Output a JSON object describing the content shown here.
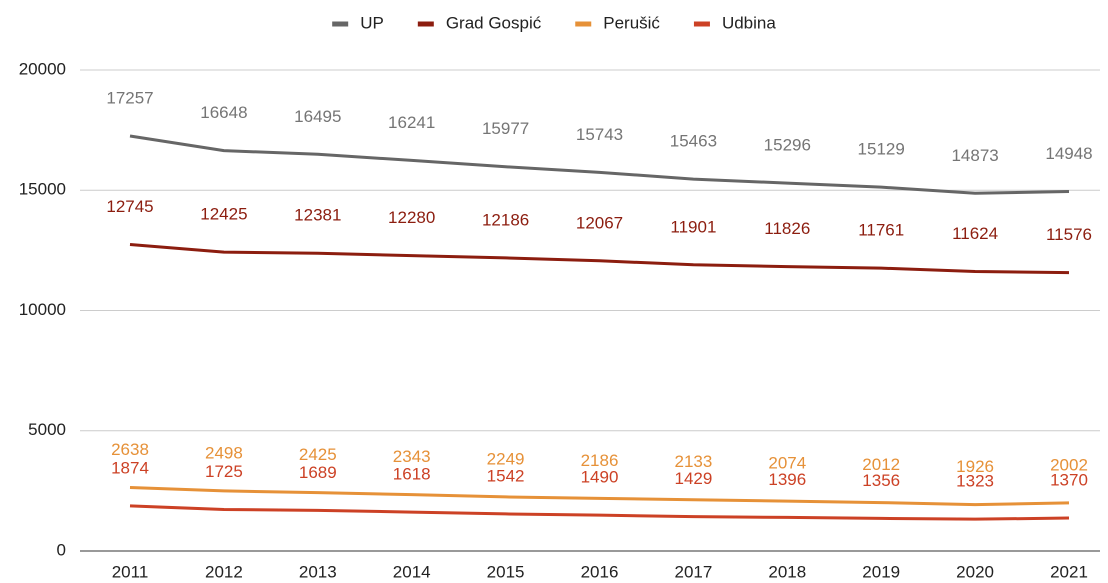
{
  "chart_data": {
    "type": "line",
    "categories": [
      "2011",
      "2012",
      "2013",
      "2014",
      "2015",
      "2016",
      "2017",
      "2018",
      "2019",
      "2020",
      "2021"
    ],
    "series": [
      {
        "name": "UP",
        "color": "#666666",
        "values": [
          17257,
          16648,
          16495,
          16241,
          15977,
          15743,
          15463,
          15296,
          15129,
          14873,
          14948
        ]
      },
      {
        "name": "Grad Gospić",
        "color": "#8c1d0f",
        "values": [
          12745,
          12425,
          12381,
          12280,
          12186,
          12067,
          11901,
          11826,
          11761,
          11624,
          11576
        ]
      },
      {
        "name": "Perušić",
        "color": "#e69138",
        "values": [
          2638,
          2498,
          2425,
          2343,
          2249,
          2186,
          2133,
          2074,
          2012,
          1926,
          2002
        ]
      },
      {
        "name": "Udbina",
        "color": "#cc4125",
        "values": [
          1874,
          1725,
          1689,
          1618,
          1542,
          1490,
          1429,
          1396,
          1356,
          1323,
          1370
        ]
      }
    ],
    "ylim": [
      0,
      20000
    ],
    "yticks": [
      0,
      5000,
      10000,
      15000,
      20000
    ],
    "grid": true,
    "legend": "top"
  }
}
